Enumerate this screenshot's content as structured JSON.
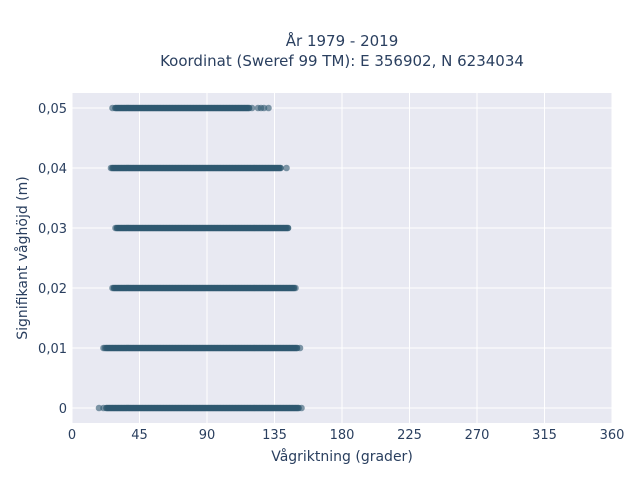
{
  "chart_data": {
    "type": "scatter",
    "title_lines": [
      "År 1979 - 2019",
      "Koordinat (Sweref 99 TM): E 356902, N 6234034"
    ],
    "xlabel": "Vågriktning (grader)",
    "ylabel": "Signifikant våghöjd (m)",
    "xlim": [
      0,
      360
    ],
    "ylim": [
      -0.0025,
      0.0525
    ],
    "x_ticks": [
      0,
      45,
      90,
      135,
      180,
      225,
      270,
      315,
      360
    ],
    "x_tick_labels": [
      "0",
      "45",
      "90",
      "135",
      "180",
      "225",
      "270",
      "315",
      "360"
    ],
    "y_ticks": [
      0,
      0.01,
      0.02,
      0.03,
      0.04,
      0.05
    ],
    "y_tick_labels": [
      "0",
      "0,01",
      "0,02",
      "0,03",
      "0,04",
      "0,05"
    ],
    "grid": true,
    "marker_color": "#2e5870",
    "plot_background": "#e8e9f2",
    "series": [
      {
        "y": 0.05,
        "dense_x_range": [
          29,
          118
        ],
        "outlier_x": [
          27,
          120,
          124,
          126,
          128,
          131
        ]
      },
      {
        "y": 0.04,
        "dense_x_range": [
          27,
          139
        ],
        "outlier_x": [
          26,
          143
        ]
      },
      {
        "y": 0.03,
        "dense_x_range": [
          30,
          144
        ],
        "outlier_x": [
          29
        ]
      },
      {
        "y": 0.02,
        "dense_x_range": [
          28,
          148
        ],
        "outlier_x": [
          27,
          149
        ]
      },
      {
        "y": 0.01,
        "dense_x_range": [
          23,
          150
        ],
        "outlier_x": [
          21,
          22,
          152
        ]
      },
      {
        "y": 0,
        "dense_x_range": [
          23,
          151
        ],
        "outlier_x": [
          18,
          21,
          153
        ]
      }
    ]
  }
}
